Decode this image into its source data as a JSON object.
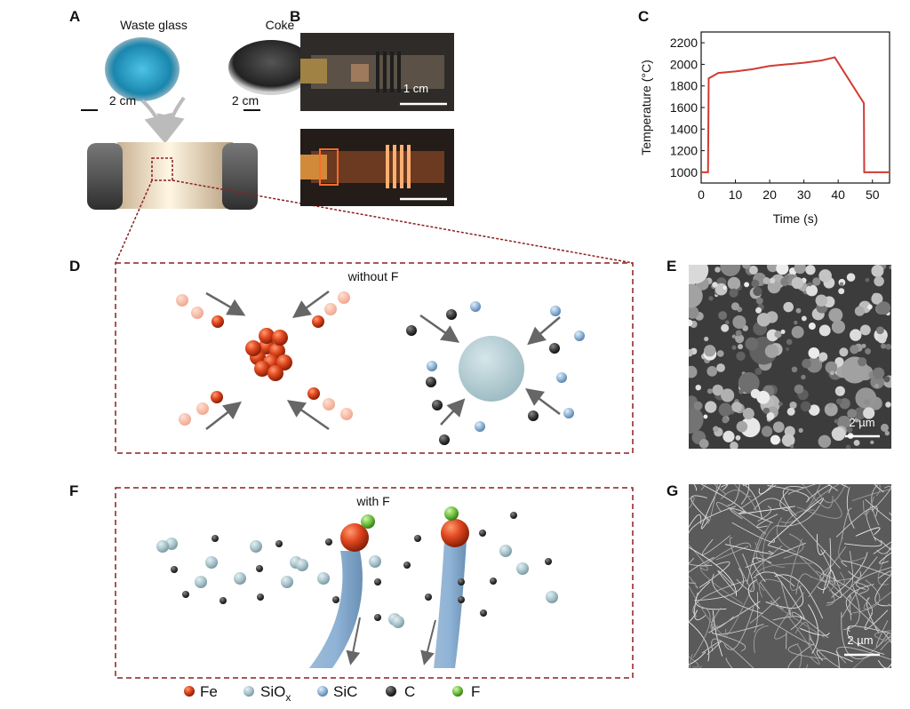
{
  "panels": {
    "A": {
      "label": "A",
      "waste_glass": "Waste glass",
      "coke": "Coke",
      "scale_left": "2 cm",
      "scale_right": "2 cm"
    },
    "B": {
      "label": "B",
      "scale_top": "1 cm"
    },
    "C": {
      "label": "C"
    },
    "D": {
      "label": "D",
      "title": "without F"
    },
    "E": {
      "label": "E",
      "scale": "2 µm"
    },
    "F": {
      "label": "F",
      "title": "with F"
    },
    "G": {
      "label": "G",
      "scale": "2 µm"
    }
  },
  "legend": {
    "fe": "Fe",
    "siox_main": "SiO",
    "siox_sub": "x",
    "sic": "SiC",
    "c": "C",
    "f": "F"
  },
  "colors": {
    "fe": "#e0471f",
    "siox": "#a9c4cc",
    "sic": "#8fb3d6",
    "c": "#3a3a3a",
    "f": "#6abf3a",
    "dashed_box": "#8b1f1f",
    "curve": "#d23a32"
  },
  "chart_data": {
    "type": "line",
    "xlabel": "Time (s)",
    "ylabel": "Temperature (°C)",
    "xlim": [
      0,
      55
    ],
    "ylim": [
      900,
      2300
    ],
    "xticks": [
      0,
      10,
      20,
      30,
      40,
      50
    ],
    "yticks": [
      1000,
      1200,
      1400,
      1600,
      1800,
      2000,
      2200
    ],
    "grid": false,
    "series": [
      {
        "x": [
          0,
          2,
          2.2,
          5,
          10,
          15,
          20,
          25,
          30,
          35,
          39,
          47.5,
          47.6,
          55
        ],
        "y": [
          1000,
          1000,
          1870,
          1920,
          1935,
          1955,
          1985,
          2000,
          2015,
          2035,
          2065,
          1640,
          1000,
          1000
        ]
      }
    ]
  }
}
